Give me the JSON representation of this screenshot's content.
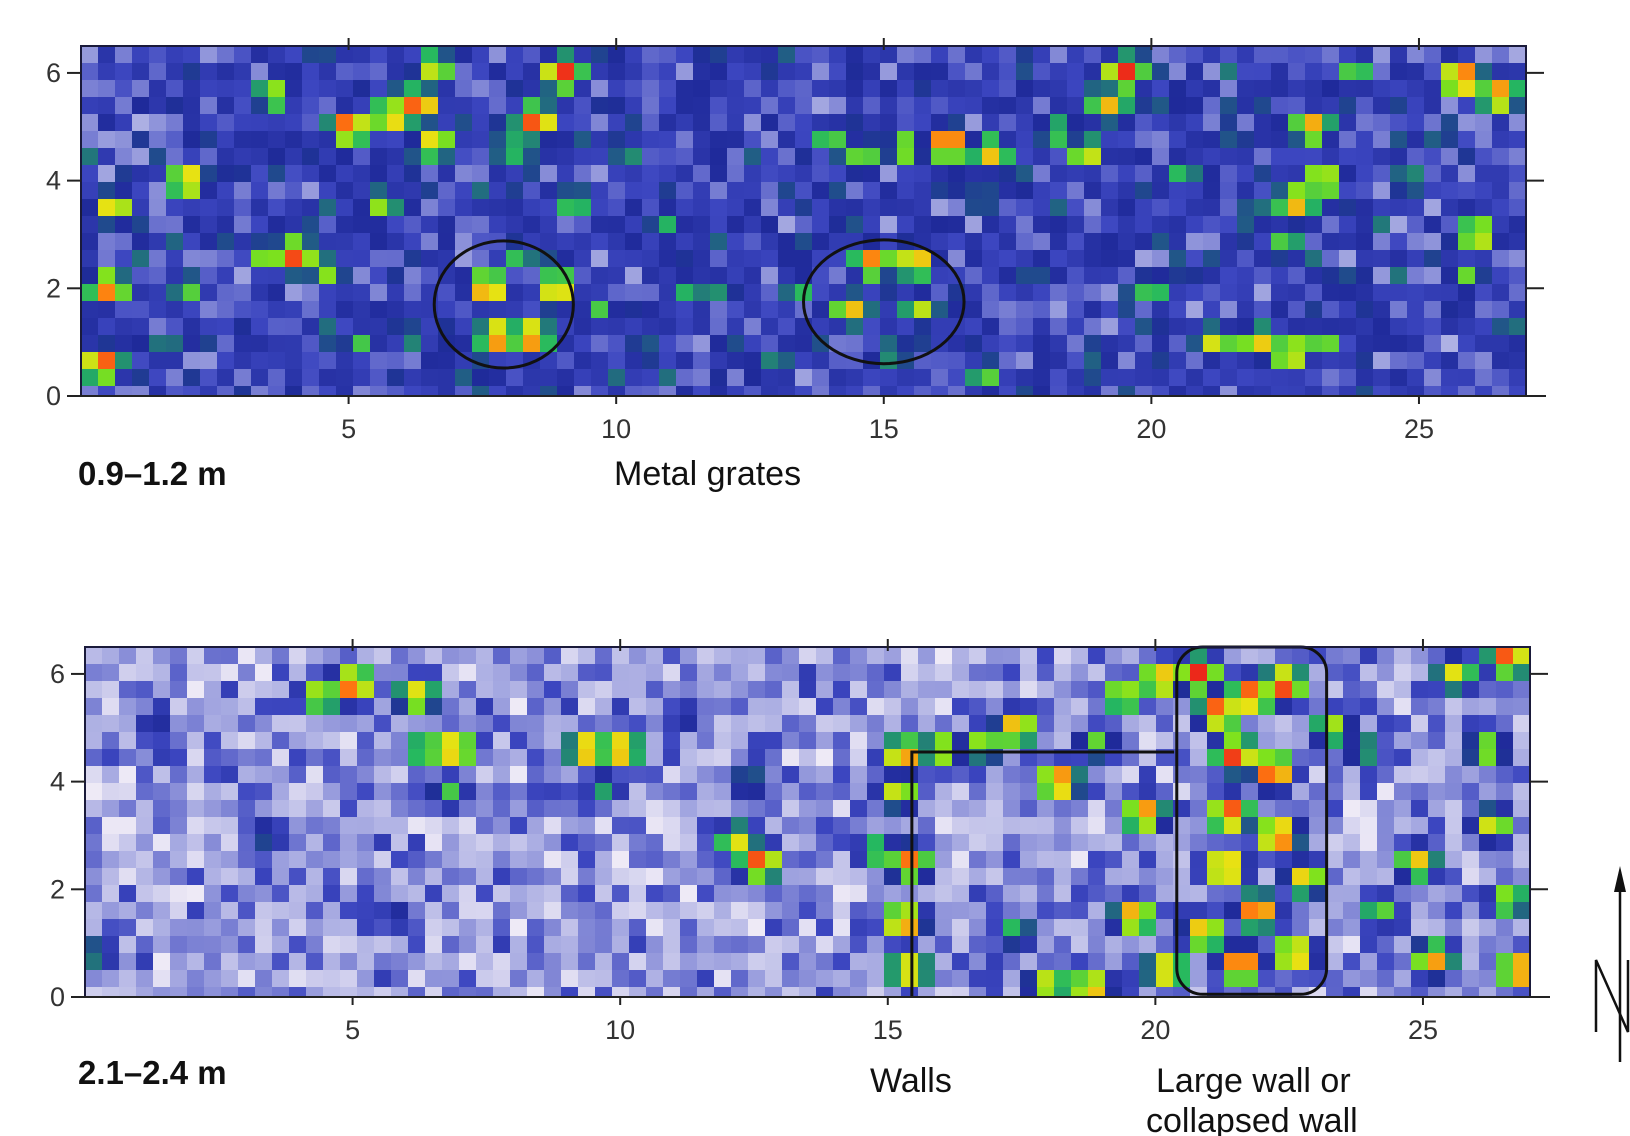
{
  "chart_data": [
    {
      "type": "heatmap",
      "panel_label": "0.9–1.2 m",
      "xlim": [
        0,
        27
      ],
      "ylim": [
        0,
        6.5
      ],
      "x_ticks": [
        5,
        10,
        15,
        20,
        25
      ],
      "y_ticks": [
        0,
        2,
        4,
        6
      ],
      "x_tick_labels": [
        "5",
        "10",
        "15",
        "20",
        "25"
      ],
      "y_tick_labels": [
        "0",
        "2",
        "4",
        "6"
      ],
      "colormap": [
        "#eeeaf6",
        "#a9ace2",
        "#3c46c0",
        "#1f2a9a",
        "#25b860",
        "#7ee21d",
        "#e8e213",
        "#ff7a10",
        "#e8141c"
      ],
      "background_level": 0.28,
      "hotspots": [
        {
          "x": 0.4,
          "y": 0.6,
          "v": 0.95
        },
        {
          "x": 0.5,
          "y": 2.0,
          "v": 0.9
        },
        {
          "x": 0.6,
          "y": 3.5,
          "v": 0.8
        },
        {
          "x": 2.0,
          "y": 4.0,
          "v": 0.85
        },
        {
          "x": 2.0,
          "y": 2.0,
          "v": 0.6
        },
        {
          "x": 3.5,
          "y": 2.6,
          "v": 0.7
        },
        {
          "x": 4.0,
          "y": 2.6,
          "v": 0.95
        },
        {
          "x": 4.6,
          "y": 2.3,
          "v": 0.65
        },
        {
          "x": 3.6,
          "y": 5.6,
          "v": 0.7
        },
        {
          "x": 5.0,
          "y": 5.0,
          "v": 0.95
        },
        {
          "x": 5.8,
          "y": 5.2,
          "v": 0.85
        },
        {
          "x": 6.3,
          "y": 5.4,
          "v": 0.95
        },
        {
          "x": 6.6,
          "y": 4.7,
          "v": 0.8
        },
        {
          "x": 6.6,
          "y": 6.1,
          "v": 0.75
        },
        {
          "x": 5.2,
          "y": 1.0,
          "v": 0.55
        },
        {
          "x": 6.2,
          "y": 1.1,
          "v": 0.5
        },
        {
          "x": 5.6,
          "y": 3.5,
          "v": 0.65
        },
        {
          "x": 7.6,
          "y": 2.0,
          "v": 0.9
        },
        {
          "x": 8.9,
          "y": 2.0,
          "v": 0.85
        },
        {
          "x": 7.8,
          "y": 1.1,
          "v": 0.92
        },
        {
          "x": 8.4,
          "y": 1.1,
          "v": 0.92
        },
        {
          "x": 8.2,
          "y": 2.6,
          "v": 0.55
        },
        {
          "x": 8.5,
          "y": 5.1,
          "v": 0.95
        },
        {
          "x": 9.0,
          "y": 6.0,
          "v": 0.98
        },
        {
          "x": 8.0,
          "y": 4.6,
          "v": 0.6
        },
        {
          "x": 9.2,
          "y": 3.6,
          "v": 0.6
        },
        {
          "x": 9.7,
          "y": 1.6,
          "v": 0.55
        },
        {
          "x": 10.2,
          "y": 4.4,
          "v": 0.5
        },
        {
          "x": 11.0,
          "y": 3.2,
          "v": 0.5
        },
        {
          "x": 11.4,
          "y": 2.0,
          "v": 0.55
        },
        {
          "x": 12.0,
          "y": 2.0,
          "v": 0.5
        },
        {
          "x": 13.4,
          "y": 2.0,
          "v": 0.55
        },
        {
          "x": 13.0,
          "y": 0.6,
          "v": 0.5
        },
        {
          "x": 14.0,
          "y": 4.8,
          "v": 0.6
        },
        {
          "x": 14.4,
          "y": 1.6,
          "v": 0.8
        },
        {
          "x": 14.8,
          "y": 2.5,
          "v": 0.88
        },
        {
          "x": 15.6,
          "y": 2.5,
          "v": 0.85
        },
        {
          "x": 15.7,
          "y": 1.6,
          "v": 0.7
        },
        {
          "x": 15.2,
          "y": 0.8,
          "v": 0.55
        },
        {
          "x": 14.6,
          "y": 4.4,
          "v": 0.65
        },
        {
          "x": 16.2,
          "y": 4.7,
          "v": 0.98
        },
        {
          "x": 17.0,
          "y": 4.5,
          "v": 0.8
        },
        {
          "x": 15.4,
          "y": 4.6,
          "v": 0.7
        },
        {
          "x": 16.9,
          "y": 0.3,
          "v": 0.6
        },
        {
          "x": 17.5,
          "y": 4.0,
          "v": 0.5
        },
        {
          "x": 18.2,
          "y": 4.9,
          "v": 0.6
        },
        {
          "x": 18.8,
          "y": 4.5,
          "v": 0.75
        },
        {
          "x": 19.5,
          "y": 6.0,
          "v": 0.98
        },
        {
          "x": 19.2,
          "y": 5.4,
          "v": 0.8
        },
        {
          "x": 20.0,
          "y": 2.0,
          "v": 0.6
        },
        {
          "x": 19.0,
          "y": 0.8,
          "v": 0.5
        },
        {
          "x": 20.6,
          "y": 4.2,
          "v": 0.55
        },
        {
          "x": 21.2,
          "y": 1.0,
          "v": 0.75
        },
        {
          "x": 22.0,
          "y": 1.0,
          "v": 0.8
        },
        {
          "x": 22.6,
          "y": 0.8,
          "v": 0.82
        },
        {
          "x": 23.2,
          "y": 1.0,
          "v": 0.65
        },
        {
          "x": 22.7,
          "y": 3.6,
          "v": 0.85
        },
        {
          "x": 23.2,
          "y": 4.0,
          "v": 0.8
        },
        {
          "x": 23.0,
          "y": 5.0,
          "v": 0.85
        },
        {
          "x": 22.5,
          "y": 2.8,
          "v": 0.6
        },
        {
          "x": 23.8,
          "y": 6.0,
          "v": 0.6
        },
        {
          "x": 24.8,
          "y": 4.0,
          "v": 0.55
        },
        {
          "x": 25.8,
          "y": 5.9,
          "v": 0.98
        },
        {
          "x": 26.5,
          "y": 5.6,
          "v": 0.9
        },
        {
          "x": 26.1,
          "y": 3.0,
          "v": 0.8
        },
        {
          "x": 25.9,
          "y": 2.2,
          "v": 0.6
        },
        {
          "x": 26.7,
          "y": 1.2,
          "v": 0.5
        }
      ],
      "annotations": [
        {
          "label": "Metal grates",
          "shape": "ellipse",
          "cx": 7.9,
          "cy": 1.7,
          "rx": 1.3,
          "ry": 1.18
        },
        {
          "label": "Metal grates",
          "shape": "ellipse",
          "cx": 15.0,
          "cy": 1.75,
          "rx": 1.5,
          "ry": 1.15
        }
      ]
    },
    {
      "type": "heatmap",
      "panel_label": "2.1–2.4 m",
      "xlim": [
        0,
        27
      ],
      "ylim": [
        0,
        6.5
      ],
      "x_ticks": [
        5,
        10,
        15,
        20,
        25
      ],
      "y_ticks": [
        0,
        2,
        4,
        6
      ],
      "x_tick_labels": [
        "5",
        "10",
        "15",
        "20",
        "25"
      ],
      "y_tick_labels": [
        "0",
        "2",
        "4",
        "6"
      ],
      "colormap": [
        "#eeeaf6",
        "#a9ace2",
        "#3c46c0",
        "#1f2a9a",
        "#25b860",
        "#7ee21d",
        "#e8e213",
        "#ff7a10",
        "#e8141c"
      ],
      "background_level": 0.14,
      "hotspots": [
        {
          "x": 0.2,
          "y": 0.8,
          "v": 0.5
        },
        {
          "x": 1.3,
          "y": 5.0,
          "v": 0.4
        },
        {
          "x": 3.4,
          "y": 3.0,
          "v": 0.45
        },
        {
          "x": 4.4,
          "y": 5.6,
          "v": 0.75
        },
        {
          "x": 5.0,
          "y": 5.8,
          "v": 0.95
        },
        {
          "x": 6.2,
          "y": 5.6,
          "v": 0.8
        },
        {
          "x": 6.4,
          "y": 4.6,
          "v": 0.7
        },
        {
          "x": 6.9,
          "y": 4.6,
          "v": 0.9
        },
        {
          "x": 6.8,
          "y": 3.8,
          "v": 0.55
        },
        {
          "x": 5.8,
          "y": 1.5,
          "v": 0.4
        },
        {
          "x": 9.4,
          "y": 4.6,
          "v": 0.9
        },
        {
          "x": 10.0,
          "y": 4.6,
          "v": 0.9
        },
        {
          "x": 9.7,
          "y": 3.9,
          "v": 0.5
        },
        {
          "x": 12.2,
          "y": 2.9,
          "v": 0.75
        },
        {
          "x": 12.6,
          "y": 2.5,
          "v": 0.95
        },
        {
          "x": 12.4,
          "y": 4.0,
          "v": 0.5
        },
        {
          "x": 11.2,
          "y": 5.2,
          "v": 0.4
        },
        {
          "x": 14.8,
          "y": 2.7,
          "v": 0.6
        },
        {
          "x": 15.3,
          "y": 4.5,
          "v": 0.88
        },
        {
          "x": 15.2,
          "y": 3.8,
          "v": 0.75
        },
        {
          "x": 15.4,
          "y": 2.5,
          "v": 0.9
        },
        {
          "x": 15.3,
          "y": 1.4,
          "v": 0.92
        },
        {
          "x": 15.4,
          "y": 0.5,
          "v": 0.85
        },
        {
          "x": 16.0,
          "y": 4.6,
          "v": 0.75
        },
        {
          "x": 16.8,
          "y": 4.7,
          "v": 0.7
        },
        {
          "x": 17.4,
          "y": 5.0,
          "v": 0.85
        },
        {
          "x": 18.2,
          "y": 4.0,
          "v": 0.95
        },
        {
          "x": 18.9,
          "y": 4.7,
          "v": 0.6
        },
        {
          "x": 19.4,
          "y": 5.6,
          "v": 0.75
        },
        {
          "x": 20.1,
          "y": 5.9,
          "v": 0.88
        },
        {
          "x": 19.8,
          "y": 3.4,
          "v": 0.9
        },
        {
          "x": 19.6,
          "y": 1.5,
          "v": 0.88
        },
        {
          "x": 20.2,
          "y": 0.5,
          "v": 0.85
        },
        {
          "x": 18.8,
          "y": 0.15,
          "v": 0.9
        },
        {
          "x": 18.0,
          "y": 0.2,
          "v": 0.8
        },
        {
          "x": 17.4,
          "y": 1.2,
          "v": 0.55
        },
        {
          "x": 20.8,
          "y": 6.0,
          "v": 0.98
        },
        {
          "x": 21.2,
          "y": 5.3,
          "v": 0.98
        },
        {
          "x": 21.8,
          "y": 5.6,
          "v": 0.98
        },
        {
          "x": 22.4,
          "y": 5.8,
          "v": 0.98
        },
        {
          "x": 21.5,
          "y": 4.5,
          "v": 0.98
        },
        {
          "x": 22.2,
          "y": 4.2,
          "v": 0.98
        },
        {
          "x": 21.4,
          "y": 3.4,
          "v": 0.98
        },
        {
          "x": 22.3,
          "y": 3.0,
          "v": 0.98
        },
        {
          "x": 21.3,
          "y": 2.4,
          "v": 0.95
        },
        {
          "x": 21.9,
          "y": 1.6,
          "v": 0.95
        },
        {
          "x": 21.6,
          "y": 0.6,
          "v": 0.98
        },
        {
          "x": 22.6,
          "y": 0.8,
          "v": 0.9
        },
        {
          "x": 20.9,
          "y": 1.2,
          "v": 0.85
        },
        {
          "x": 22.8,
          "y": 2.2,
          "v": 0.8
        },
        {
          "x": 23.3,
          "y": 5.0,
          "v": 0.7
        },
        {
          "x": 23.9,
          "y": 4.6,
          "v": 0.55
        },
        {
          "x": 24.2,
          "y": 1.6,
          "v": 0.6
        },
        {
          "x": 24.9,
          "y": 2.5,
          "v": 0.8
        },
        {
          "x": 25.2,
          "y": 0.7,
          "v": 0.85
        },
        {
          "x": 25.6,
          "y": 6.0,
          "v": 0.75
        },
        {
          "x": 26.2,
          "y": 4.6,
          "v": 0.7
        },
        {
          "x": 26.6,
          "y": 6.3,
          "v": 0.95
        },
        {
          "x": 26.3,
          "y": 3.2,
          "v": 0.75
        },
        {
          "x": 26.8,
          "y": 0.5,
          "v": 0.95
        },
        {
          "x": 26.6,
          "y": 1.8,
          "v": 0.7
        }
      ],
      "annotations": [
        {
          "label": "Walls",
          "shape": "polyline",
          "points": [
            [
              15.45,
              0
            ],
            [
              15.45,
              4.55
            ],
            [
              20.35,
              4.55
            ]
          ]
        },
        {
          "label": "Large wall or collapsed wall",
          "shape": "rounded-rect",
          "x0": 20.4,
          "x1": 23.2,
          "y0": 0.05,
          "y1": 6.5
        }
      ]
    }
  ],
  "annotation_labels": {
    "metal_grates": "Metal grates",
    "walls": "Walls",
    "large_wall_line1": "Large wall or",
    "large_wall_line2": "collapsed wall"
  }
}
